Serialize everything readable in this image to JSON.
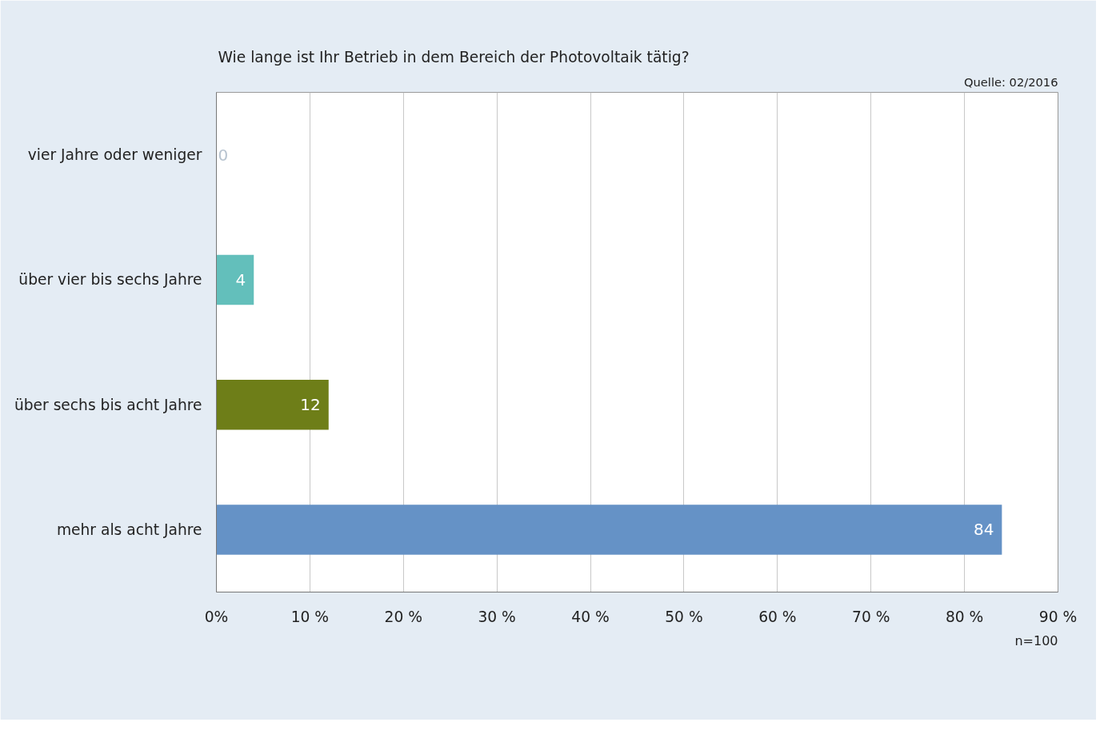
{
  "chart_data": {
    "type": "bar",
    "orientation": "horizontal",
    "title": "Wie lange ist Ihr Betrieb in dem Bereich der Photovoltaik tätig?",
    "categories": [
      "vier Jahre oder weniger",
      "über vier bis sechs Jahre",
      "über sechs bis acht Jahre",
      "mehr als acht Jahre"
    ],
    "values": [
      0,
      4,
      12,
      84
    ],
    "colors": [
      "#63bfbb",
      "#63bfbb",
      "#6e7e18",
      "#6592c6"
    ],
    "xlim": [
      0,
      90
    ],
    "xticks": [
      {
        "value": 0,
        "label": "0%"
      },
      {
        "value": 10,
        "label": "10 %"
      },
      {
        "value": 20,
        "label": "20 %"
      },
      {
        "value": 30,
        "label": "30 %"
      },
      {
        "value": 40,
        "label": "40 %"
      },
      {
        "value": 50,
        "label": "50 %"
      },
      {
        "value": 60,
        "label": "60 %"
      },
      {
        "value": 70,
        "label": "70 %"
      },
      {
        "value": 80,
        "label": "80 %"
      },
      {
        "value": 90,
        "label": "90 %"
      }
    ],
    "data_labels": true,
    "grid": "x",
    "annotations": [
      "Quelle: 02/2016",
      "n=100"
    ]
  }
}
